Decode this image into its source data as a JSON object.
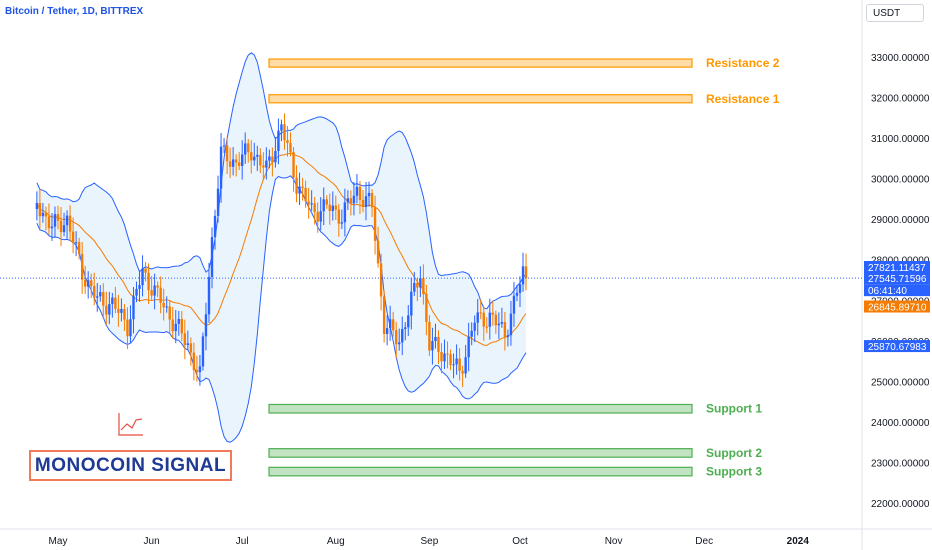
{
  "header": {
    "symbol": "Bitcoin / Tether, 1D, BITTREX",
    "currency": "USDT"
  },
  "brand": {
    "text": "MONOCOIN SIGNAL",
    "logo_icon": "line-chart-icon"
  },
  "colors": {
    "up": "#2962ff",
    "down": "#f57c00",
    "bollinger": "#2962ff",
    "bollinger_fill": "#e3f0fb",
    "moving_average": "#f57c00",
    "resistance": "#ff9800",
    "support": "#4caf50",
    "last_price_bg": "#2962ff",
    "ma_price_bg": "#f57c00",
    "lower_band_bg": "#2962ff"
  },
  "chart_data": {
    "type": "candlestick",
    "title": "Bitcoin / Tether, 1D, BITTREX",
    "y_axis": {
      "ticks": [
        "33000.00000",
        "32000.00000",
        "31000.00000",
        "30000.00000",
        "29000.00000",
        "28000.00000",
        "27000.00000",
        "26000.00000",
        "25000.00000",
        "24000.00000",
        "23000.00000",
        "22000.00000"
      ],
      "ylim": [
        21500,
        33600
      ]
    },
    "x_axis": {
      "ticks": [
        "May",
        "Jun",
        "Jul",
        "Aug",
        "Sep",
        "Oct",
        "Nov",
        "Dec",
        "2024"
      ]
    },
    "zones": [
      {
        "label": "Resistance 2",
        "kind": "resistance",
        "low": 32750,
        "high": 32950
      },
      {
        "label": "Resistance 1",
        "kind": "resistance",
        "low": 31870,
        "high": 32070
      },
      {
        "label": "Support 1",
        "kind": "support",
        "low": 24220,
        "high": 24430
      },
      {
        "label": "Support 2",
        "kind": "support",
        "low": 23130,
        "high": 23340
      },
      {
        "label": "Support 3",
        "kind": "support",
        "low": 22670,
        "high": 22880
      }
    ],
    "price_labels": [
      {
        "kind": "last_price",
        "value": "27821.11437"
      },
      {
        "kind": "last_price",
        "value": "27545.71596"
      },
      {
        "kind": "countdown",
        "value": "06:41:40"
      },
      {
        "kind": "moving_average",
        "value": "26845.89710"
      },
      {
        "kind": "lower_band",
        "value": "25870.67983"
      }
    ],
    "price_anchors": [
      {
        "date": "Apr 24",
        "value": 29400
      },
      {
        "date": "Apr 29",
        "value": 28800
      },
      {
        "date": "May 04",
        "value": 29000
      },
      {
        "date": "May 09",
        "value": 27700
      },
      {
        "date": "May 14",
        "value": 27000
      },
      {
        "date": "May 19",
        "value": 26900
      },
      {
        "date": "May 24",
        "value": 26400
      },
      {
        "date": "May 29",
        "value": 27700
      },
      {
        "date": "Jun 03",
        "value": 27100
      },
      {
        "date": "Jun 08",
        "value": 26500
      },
      {
        "date": "Jun 13",
        "value": 25900
      },
      {
        "date": "Jun 17",
        "value": 25100
      },
      {
        "date": "Jun 21",
        "value": 28500
      },
      {
        "date": "Jun 24",
        "value": 30600
      },
      {
        "date": "Jun 29",
        "value": 30400
      },
      {
        "date": "Jul 04",
        "value": 30700
      },
      {
        "date": "Jul 09",
        "value": 30200
      },
      {
        "date": "Jul 14",
        "value": 31300
      },
      {
        "date": "Jul 19",
        "value": 29900
      },
      {
        "date": "Jul 24",
        "value": 29200
      },
      {
        "date": "Jul 29",
        "value": 29300
      },
      {
        "date": "Aug 03",
        "value": 29100
      },
      {
        "date": "Aug 08",
        "value": 29700
      },
      {
        "date": "Aug 13",
        "value": 29300
      },
      {
        "date": "Aug 17",
        "value": 26400
      },
      {
        "date": "Aug 22",
        "value": 26000
      },
      {
        "date": "Aug 29",
        "value": 27700
      },
      {
        "date": "Sep 01",
        "value": 25900
      },
      {
        "date": "Sep 06",
        "value": 25700
      },
      {
        "date": "Sep 11",
        "value": 25200
      },
      {
        "date": "Sep 16",
        "value": 26500
      },
      {
        "date": "Sep 21",
        "value": 26600
      },
      {
        "date": "Sep 26",
        "value": 26200
      },
      {
        "date": "Sep 29",
        "value": 26900
      },
      {
        "date": "Oct 02",
        "value": 27700
      },
      {
        "date": "Oct 03",
        "value": 27545
      }
    ]
  }
}
